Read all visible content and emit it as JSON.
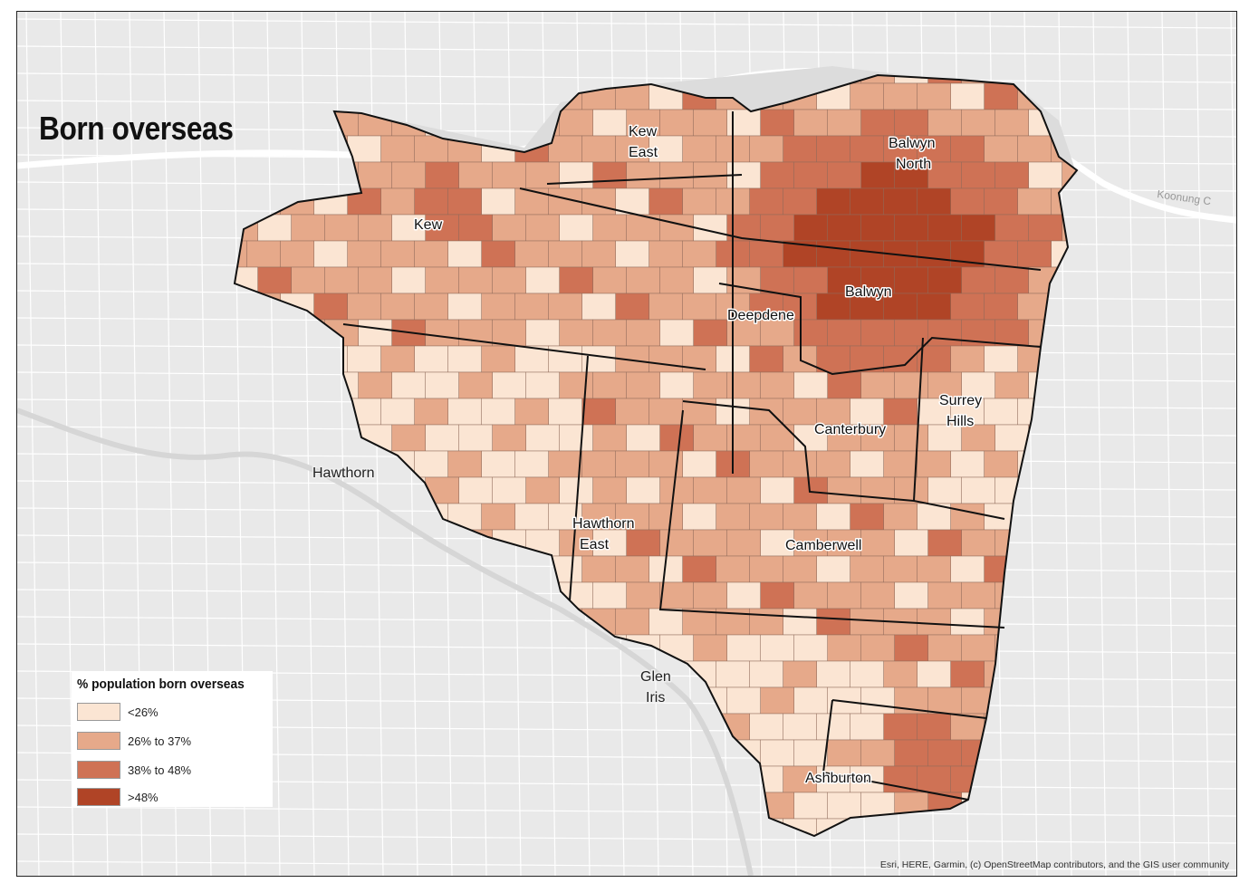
{
  "map": {
    "title": "Born overseas",
    "attribution": "Esri, HERE, Garmin, (c) OpenStreetMap contributors, and the GIS user community",
    "road_label": "Koonung C",
    "outside_labels": [
      "Hawthorn",
      "Glen",
      "Iris"
    ],
    "suburbs": [
      {
        "name": "Kew",
        "lines": [
          "Kew"
        ]
      },
      {
        "name": "Kew East",
        "lines": [
          "Kew",
          "East"
        ]
      },
      {
        "name": "Balwyn North",
        "lines": [
          "Balwyn",
          "North"
        ]
      },
      {
        "name": "Balwyn",
        "lines": [
          "Balwyn"
        ]
      },
      {
        "name": "Deepdene",
        "lines": [
          "Deepdene"
        ]
      },
      {
        "name": "Surrey Hills",
        "lines": [
          "Surrey",
          "Hills"
        ]
      },
      {
        "name": "Canterbury",
        "lines": [
          "Canterbury"
        ]
      },
      {
        "name": "Hawthorn East",
        "lines": [
          "Hawthorn",
          "East"
        ]
      },
      {
        "name": "Camberwell",
        "lines": [
          "Camberwell"
        ]
      },
      {
        "name": "Ashburton",
        "lines": [
          "Ashburton"
        ]
      }
    ]
  },
  "legend": {
    "title": "% population born overseas",
    "classes": [
      {
        "label": "<26%",
        "color": "#fbe5d3"
      },
      {
        "label": "26% to 37%",
        "color": "#e6a98a"
      },
      {
        "label": "38% to 48%",
        "color": "#cf7255"
      },
      {
        "label": ">48%",
        "color": "#b04426"
      }
    ]
  }
}
